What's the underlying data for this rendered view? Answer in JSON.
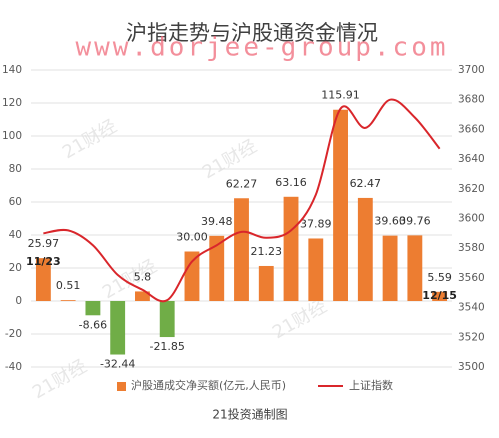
{
  "chart_data": {
    "type": "bar",
    "title": "沪指走势与沪股通资金情况",
    "watermark": "www.dorjee-group.com",
    "watermark_faint": "21财经",
    "source": "21投资通制图",
    "categories": [
      "11/23",
      null,
      null,
      null,
      null,
      null,
      null,
      null,
      null,
      null,
      null,
      null,
      null,
      null,
      null,
      null,
      "12/15"
    ],
    "series": [
      {
        "name": "沪股通成交净买额(亿元,人民币)",
        "type": "bar",
        "color": "#ed7d31",
        "negative_color": "#70ad47",
        "values": [
          25.97,
          0.51,
          -8.66,
          -32.44,
          5.8,
          -21.85,
          30.0,
          39.48,
          62.27,
          21.23,
          63.16,
          37.89,
          115.91,
          62.47,
          39.6,
          39.76,
          5.59
        ],
        "value_labels": [
          "25.97",
          "0.51",
          "-8.66",
          "-32.44",
          "5.8",
          "-21.85",
          "30.00",
          "39.48",
          "62.27",
          "21.23",
          "63.16",
          "37.89",
          "115.91",
          "62.47",
          "39.60",
          "39.76",
          "5.59"
        ]
      },
      {
        "name": "上证指数",
        "type": "line",
        "axis": "y2",
        "color": "#d9262b",
        "values": [
          3590,
          3592,
          3582,
          3562,
          3552,
          3545,
          3571,
          3582,
          3591,
          3587,
          3592,
          3616,
          3674,
          3661,
          3680,
          3668,
          3647
        ]
      }
    ],
    "ylim": [
      -40,
      140
    ],
    "yticks": [
      -40,
      -20,
      0,
      20,
      40,
      60,
      80,
      100,
      120,
      140
    ],
    "y2lim": [
      3500,
      3700
    ],
    "y2ticks": [
      3500,
      3520,
      3540,
      3560,
      3580,
      3600,
      3620,
      3640,
      3660,
      3680,
      3700
    ],
    "legend": "bottom"
  }
}
